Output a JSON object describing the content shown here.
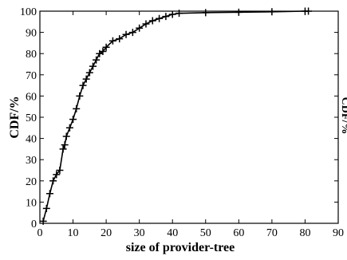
{
  "chart_data": {
    "type": "line",
    "title": "",
    "xlabel": "size of provider-tree",
    "ylabel": "CDF/%",
    "xlim": [
      0,
      90
    ],
    "ylim": [
      0,
      100
    ],
    "xticks": [
      0,
      10,
      20,
      30,
      40,
      50,
      60,
      70,
      80,
      90
    ],
    "yticks": [
      0,
      10,
      20,
      30,
      40,
      50,
      60,
      70,
      80,
      90,
      100
    ],
    "xtick_labels": [
      "0",
      "10",
      "20",
      "30",
      "40",
      "50",
      "60",
      "70",
      "80",
      "90"
    ],
    "ytick_labels": [
      "0",
      "10",
      "20",
      "30",
      "40",
      "50",
      "60",
      "70",
      "80",
      "90",
      "100"
    ],
    "grid": false,
    "legend": "none",
    "marker": "plus",
    "line_color": "#000000",
    "series": [
      {
        "x": [
          1,
          2,
          3,
          4,
          5,
          6,
          7,
          7.5,
          8,
          9,
          10,
          11,
          12,
          13,
          14,
          15,
          16,
          17,
          18,
          19,
          20,
          22,
          24,
          26,
          28,
          30,
          32,
          34,
          36,
          38,
          40,
          42,
          50,
          60,
          70,
          80,
          81
        ],
        "y": [
          1,
          7,
          14,
          20,
          23,
          25,
          35,
          37,
          41,
          45,
          49,
          54,
          60,
          65,
          68,
          71,
          74,
          77,
          80,
          81,
          83,
          86,
          87,
          89,
          90,
          92,
          94,
          95.5,
          96.5,
          97.5,
          98.5,
          99,
          99.3,
          99.5,
          99.7,
          100,
          100
        ]
      }
    ],
    "clipped_right_label": "CDF/%"
  }
}
